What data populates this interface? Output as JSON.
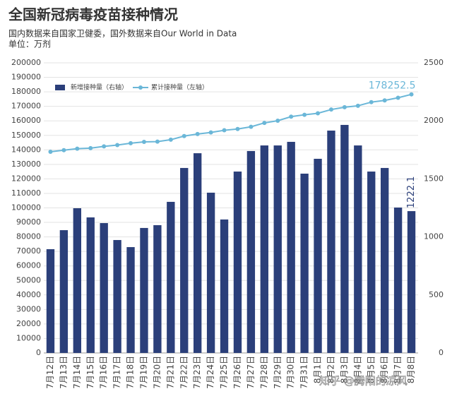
{
  "chart_data": {
    "type": "bar",
    "title": "全国新冠病毒疫苗接种情况",
    "subtitle": [
      "国内数据来自国家卫健委，国外数据来自Our World in Data",
      "单位：万剂"
    ],
    "watermark": "知乎 @腾阳的凉风",
    "categories": [
      "7月12日",
      "7月13日",
      "7月14日",
      "7月15日",
      "7月16日",
      "7月17日",
      "7月18日",
      "7月19日",
      "7月20日",
      "7月21日",
      "7月22日",
      "7月23日",
      "7月24日",
      "7月25日",
      "7月26日",
      "7月27日",
      "7月28日",
      "7月29日",
      "7月30日",
      "7月31日",
      "8月1日",
      "8月2日",
      "8月3日",
      "8月4日",
      "8月5日",
      "8月6日",
      "8月7日",
      "8月8日"
    ],
    "series": [
      {
        "name": "新增接种量（右轴）",
        "type": "bar",
        "axis": "y2",
        "color": "#2b3f7a",
        "values": [
          894,
          1058,
          1247,
          1168,
          1119,
          973,
          912,
          1077,
          1101,
          1302,
          1594,
          1721,
          1381,
          1150,
          1563,
          1740,
          1788,
          1788,
          1819,
          1545,
          1673,
          1916,
          1965,
          1788,
          1563,
          1594,
          1253,
          1222.1
        ]
      },
      {
        "name": "累计接种量（左轴）",
        "type": "line",
        "color": "#6bb7d8",
        "values": [
          138700,
          139800,
          140800,
          141200,
          142400,
          143300,
          144600,
          145500,
          145700,
          147000,
          149500,
          150900,
          152000,
          153500,
          154400,
          155900,
          158600,
          160100,
          162900,
          164200,
          165200,
          167800,
          169400,
          170400,
          172900,
          174100,
          175900,
          178252.5
        ]
      }
    ],
    "ylim": [
      0,
      200000
    ],
    "yticks": [
      0,
      10000,
      20000,
      30000,
      40000,
      50000,
      60000,
      70000,
      80000,
      90000,
      100000,
      110000,
      120000,
      130000,
      140000,
      150000,
      160000,
      170000,
      180000,
      190000,
      200000
    ],
    "y2lim": [
      0,
      2500
    ],
    "y2ticks": [
      0,
      500,
      1000,
      1500,
      2000,
      2500
    ],
    "grid": true
  }
}
